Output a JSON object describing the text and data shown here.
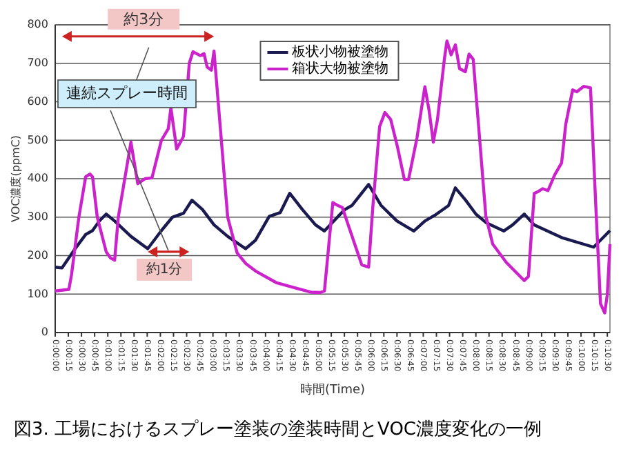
{
  "chart_data": {
    "type": "line",
    "title": "図3. 工場におけるスプレー塗装の塗装時間とVOC濃度変化の一例",
    "xlabel": "時間(Time)",
    "ylabel": "VOC濃度(ppmC)",
    "annotations": [
      "約3分",
      "約1分",
      "連続スプレー時間"
    ],
    "xlim": [
      0,
      10.55
    ],
    "ylim": [
      0,
      800
    ],
    "yticks": [
      0,
      100,
      200,
      300,
      400,
      500,
      600,
      700,
      800
    ],
    "xticks": [
      {
        "value": 0,
        "label": "0:00:00"
      },
      {
        "value": 0.25,
        "label": "0:00:15"
      },
      {
        "value": 0.5,
        "label": "0:00:30"
      },
      {
        "value": 0.75,
        "label": "0:00:45"
      },
      {
        "value": 1,
        "label": "0:01:00"
      },
      {
        "value": 1.25,
        "label": "0:01:15"
      },
      {
        "value": 1.5,
        "label": "0:01:30"
      },
      {
        "value": 1.75,
        "label": "0:01:45"
      },
      {
        "value": 2,
        "label": "0:02:00"
      },
      {
        "value": 2.25,
        "label": "0:02:15"
      },
      {
        "value": 2.5,
        "label": "0:02:30"
      },
      {
        "value": 2.75,
        "label": "0:02:45"
      },
      {
        "value": 3,
        "label": "0:03:00"
      },
      {
        "value": 3.25,
        "label": "0:03:15"
      },
      {
        "value": 3.5,
        "label": "0:03:30"
      },
      {
        "value": 3.75,
        "label": "0:03:45"
      },
      {
        "value": 4,
        "label": "0:04:00"
      },
      {
        "value": 4.25,
        "label": "0:04:15"
      },
      {
        "value": 4.5,
        "label": "0:04:30"
      },
      {
        "value": 4.75,
        "label": "0:04:45"
      },
      {
        "value": 5,
        "label": "0:05:00"
      },
      {
        "value": 5.25,
        "label": "0:05:15"
      },
      {
        "value": 5.5,
        "label": "0:05:30"
      },
      {
        "value": 5.75,
        "label": "0:05:45"
      },
      {
        "value": 6,
        "label": "0:06:00"
      },
      {
        "value": 6.25,
        "label": "0:06:15"
      },
      {
        "value": 6.5,
        "label": "0:06:30"
      },
      {
        "value": 6.75,
        "label": "0:06:45"
      },
      {
        "value": 7,
        "label": "0:07:00"
      },
      {
        "value": 7.25,
        "label": "0:07:15"
      },
      {
        "value": 7.5,
        "label": "0:07:30"
      },
      {
        "value": 7.75,
        "label": "0:07:45"
      },
      {
        "value": 8,
        "label": "0:08:00"
      },
      {
        "value": 8.25,
        "label": "0:08:15"
      },
      {
        "value": 8.5,
        "label": "0:08:30"
      },
      {
        "value": 8.75,
        "label": "0:08:45"
      },
      {
        "value": 9,
        "label": "0:09:00"
      },
      {
        "value": 9.25,
        "label": "0:09:15"
      },
      {
        "value": 9.5,
        "label": "0:09:30"
      },
      {
        "value": 9.75,
        "label": "0:09:45"
      },
      {
        "value": 10,
        "label": "0:10:00"
      },
      {
        "value": 10.25,
        "label": "0:10:15"
      },
      {
        "value": 10.5,
        "label": "0:10:30"
      }
    ],
    "grid": "y",
    "legend": "top",
    "marker": "none",
    "line_style": "solid",
    "series": [
      {
        "name": "板状小物被塗物",
        "color": "#1a1a50",
        "x": [
          0,
          0.13,
          0.39,
          0.58,
          0.71,
          0.84,
          0.97,
          1.13,
          1.44,
          1.76,
          2.02,
          2.23,
          2.44,
          2.6,
          2.8,
          3.02,
          3.28,
          3.62,
          3.81,
          4.07,
          4.28,
          4.46,
          4.7,
          4.95,
          5.12,
          5.38,
          5.51,
          5.64,
          5.96,
          6.2,
          6.5,
          6.82,
          7.03,
          7.22,
          7.48,
          7.61,
          7.8,
          8.0,
          8.2,
          8.53,
          8.7,
          8.92,
          9.11,
          9.63,
          10.24,
          10.55
        ],
        "values": [
          170,
          168,
          220,
          255,
          265,
          290,
          308,
          290,
          250,
          218,
          265,
          300,
          310,
          344,
          320,
          280,
          250,
          218,
          240,
          302,
          312,
          362,
          320,
          280,
          264,
          302,
          320,
          330,
          385,
          330,
          290,
          264,
          290,
          305,
          330,
          376,
          345,
          308,
          285,
          264,
          280,
          308,
          280,
          247,
          222,
          265
        ]
      },
      {
        "name": "箱状大物被塗物",
        "color": "#cc22cc",
        "x": [
          0,
          0.26,
          0.31,
          0.45,
          0.58,
          0.66,
          0.71,
          0.8,
          0.97,
          1.05,
          1.13,
          1.2,
          1.44,
          1.57,
          1.71,
          1.84,
          2.02,
          2.15,
          2.2,
          2.31,
          2.44,
          2.55,
          2.62,
          2.76,
          2.83,
          2.89,
          2.97,
          3.02,
          3.28,
          3.46,
          3.62,
          3.81,
          4.2,
          4.59,
          4.86,
          5.04,
          5.12,
          5.28,
          5.38,
          5.46,
          5.83,
          5.96,
          6.04,
          6.17,
          6.27,
          6.38,
          6.51,
          6.64,
          6.72,
          6.88,
          7.03,
          7.11,
          7.19,
          7.27,
          7.4,
          7.45,
          7.53,
          7.61,
          7.69,
          7.8,
          7.87,
          7.95,
          8.19,
          8.32,
          8.58,
          8.92,
          9.0,
          9.11,
          9.19,
          9.27,
          9.37,
          9.5,
          9.63,
          9.71,
          9.84,
          9.92,
          10.05,
          10.18,
          10.29,
          10.37,
          10.45,
          10.5,
          10.55
        ],
        "values": [
          108,
          112,
          150,
          300,
          405,
          412,
          405,
          300,
          210,
          194,
          188,
          300,
          495,
          387,
          400,
          402,
          500,
          530,
          584,
          477,
          510,
          700,
          730,
          720,
          725,
          690,
          682,
          732,
          300,
          207,
          180,
          160,
          130,
          115,
          105,
          104,
          108,
          338,
          330,
          325,
          176,
          170,
          326,
          536,
          572,
          554,
          482,
          398,
          398,
          506,
          639,
          578,
          495,
          554,
          710,
          758,
          722,
          748,
          686,
          678,
          724,
          710,
          302,
          230,
          182,
          135,
          146,
          362,
          367,
          374,
          369,
          410,
          441,
          542,
          631,
          626,
          640,
          636,
          302,
          75,
          51,
          99,
          230
        ]
      }
    ]
  }
}
